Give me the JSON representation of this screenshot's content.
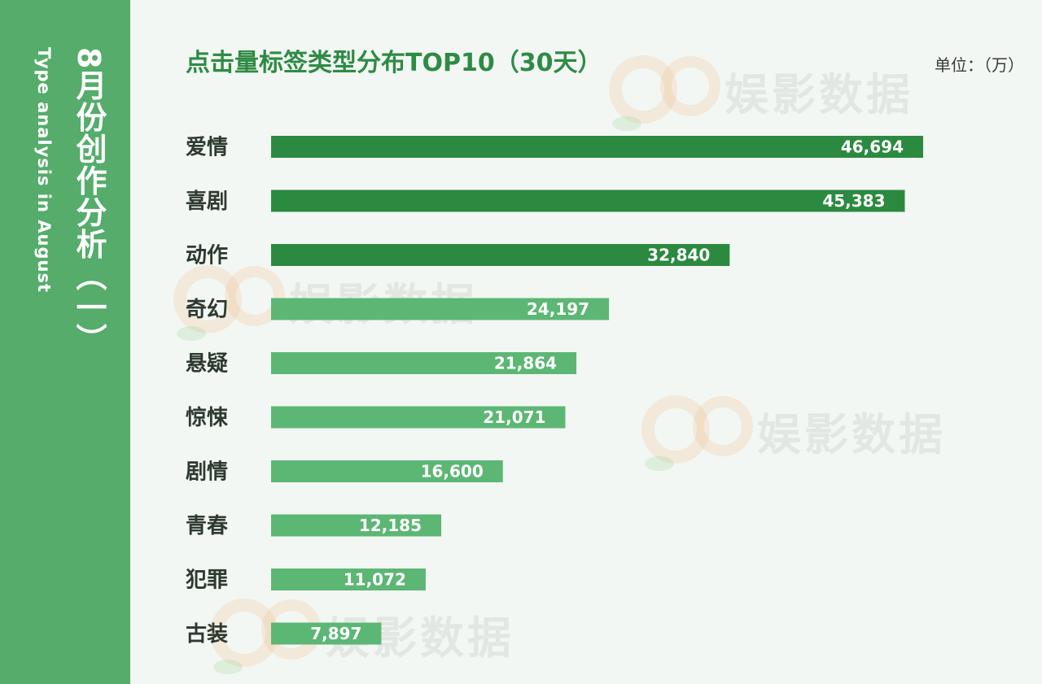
{
  "sidebar": {
    "title": "8月份创作分析（一）",
    "subtitle": "Type analysis in  August"
  },
  "header": {
    "unit": "单位：（万）"
  },
  "watermark": {
    "text": "娱影数据"
  },
  "colors": {
    "sidebar": "#55ac6b",
    "bar_dark": "#2b8a3f",
    "bar_light": "#5cb774",
    "title": "#2e8b45"
  },
  "chart_data": {
    "type": "bar",
    "orientation": "horizontal",
    "title": "点击量标签类型分布TOP10（30天）",
    "categories": [
      "爱情",
      "喜剧",
      "动作",
      "奇幻",
      "悬疑",
      "惊悚",
      "剧情",
      "青春",
      "犯罪",
      "古装"
    ],
    "values": [
      46694,
      45383,
      32840,
      24197,
      21864,
      21071,
      16600,
      12185,
      11072,
      7897
    ],
    "value_labels": [
      "46,694",
      "45,383",
      "32,840",
      "24,197",
      "21,864",
      "21,071",
      "16,600",
      "12,185",
      "11,072",
      "7,897"
    ],
    "highlight_top": 3,
    "xlim": [
      0,
      46694
    ],
    "grid": false,
    "legend": "none"
  }
}
